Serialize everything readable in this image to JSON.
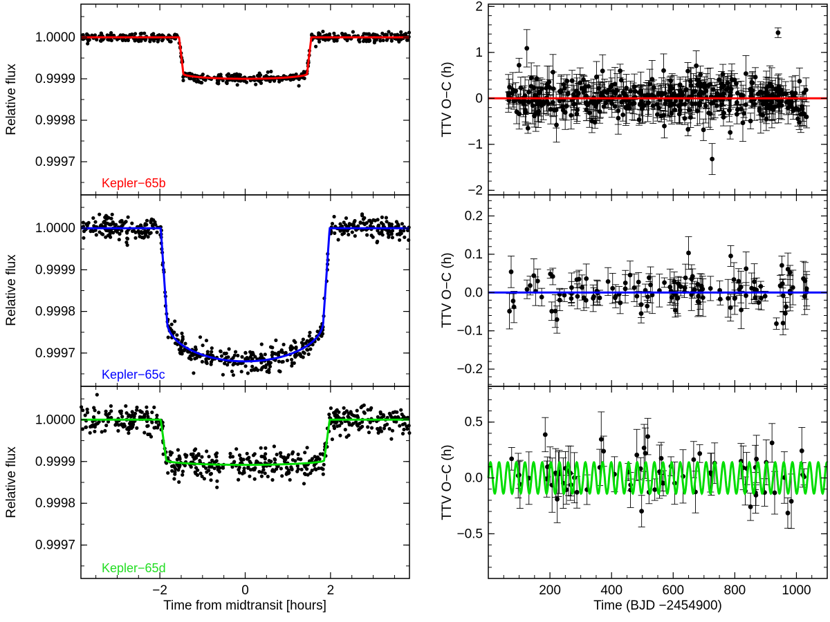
{
  "figure": {
    "left_panels": {
      "xlabel": "Time from midtransit [hours]",
      "ylabel": "Relative flux",
      "xlim": [
        -3.85,
        3.85
      ],
      "xticks": [
        -2,
        0,
        2
      ],
      "xticklabels": [
        "−2",
        "0",
        "2"
      ]
    },
    "right_panels": {
      "xlabel": "Time (BJD −2454900)",
      "ylabel": "TTV O−C (h)",
      "xlim": [
        0,
        1100
      ],
      "xticks": [
        200,
        400,
        600,
        800,
        1000
      ],
      "xticklabels": [
        "200",
        "400",
        "600",
        "800",
        "1000"
      ]
    }
  },
  "chart_data": [
    {
      "type": "scatter",
      "panel": "light-curve-b",
      "title": "Kepler−65b",
      "color": "#ff0000",
      "xlabel": "",
      "ylabel": "Relative flux",
      "xlim": [
        -3.85,
        3.85
      ],
      "ylim": [
        0.99962,
        1.00008
      ],
      "yticks": [
        1.0,
        0.9999,
        0.9998,
        0.9997
      ],
      "yticklabels": [
        "1.0000",
        "0.9999",
        "0.9998",
        "0.9997"
      ],
      "model": {
        "depth": 0.0001,
        "half_duration": 1.55,
        "ingress": 0.1,
        "limb_darkening": 0.12
      },
      "scatter_sigma": 5.5e-06,
      "n_points": 520
    },
    {
      "type": "scatter",
      "panel": "light-curve-c",
      "title": "Kepler−65c",
      "color": "#0000ff",
      "xlabel": "",
      "ylabel": "Relative flux",
      "xlim": [
        -3.85,
        3.85
      ],
      "ylim": [
        0.99962,
        1.00008
      ],
      "yticks": [
        1.0,
        0.9999,
        0.9998,
        0.9997
      ],
      "yticklabels": [
        "1.0000",
        "0.9999",
        "0.9998",
        "0.9997"
      ],
      "model": {
        "depth": 0.00032,
        "half_duration": 1.98,
        "ingress": 0.15,
        "limb_darkening": 0.3
      },
      "scatter_sigma": 1.35e-05,
      "n_points": 560
    },
    {
      "type": "scatter",
      "panel": "light-curve-d",
      "title": "Kepler−65d",
      "color": "#00dd00",
      "xlabel": "Time from midtransit [hours]",
      "ylabel": "Relative flux",
      "xlim": [
        -3.85,
        3.85
      ],
      "ylim": [
        0.99962,
        1.00008
      ],
      "yticks": [
        1.0,
        0.9999,
        0.9998,
        0.9997
      ],
      "yticklabels": [
        "1.0000",
        "0.9999",
        "0.9998",
        "0.9997"
      ],
      "model": {
        "depth": 0.000108,
        "half_duration": 1.98,
        "ingress": 0.13,
        "limb_darkening": 0.1
      },
      "scatter_sigma": 1.75e-05,
      "n_points": 560
    },
    {
      "type": "scatter",
      "panel": "ttv-b",
      "color": "#ff0000",
      "xlabel": "",
      "ylabel": "TTV O−C (h)",
      "xlim": [
        0,
        1100
      ],
      "ylim": [
        -2.1,
        2.05
      ],
      "yticks": [
        2,
        1,
        0,
        -1,
        -2
      ],
      "yticklabels": [
        "2",
        "1",
        "0",
        "−1",
        "−2"
      ],
      "model": {
        "type": "constant",
        "value": 0
      },
      "n_points": 420,
      "x_range": [
        65,
        1035
      ],
      "typical_error": 0.25
    },
    {
      "type": "scatter",
      "panel": "ttv-c",
      "color": "#0000ff",
      "xlabel": "",
      "ylabel": "TTV O−C (h)",
      "xlim": [
        0,
        1100
      ],
      "ylim": [
        -0.245,
        0.255
      ],
      "yticks": [
        0.2,
        0.1,
        0.0,
        -0.1,
        -0.2
      ],
      "yticklabels": [
        "0.2",
        "0.1",
        "0.0",
        "−0.1",
        "−0.2"
      ],
      "model": {
        "type": "constant",
        "value": 0
      },
      "n_points": 125,
      "x_range": [
        65,
        1035
      ],
      "typical_error": 0.03
    },
    {
      "type": "scatter",
      "panel": "ttv-d",
      "color": "#00dd00",
      "xlabel": "Time (BJD −2454900)",
      "ylabel": "TTV O−C (h)",
      "xlim": [
        0,
        1100
      ],
      "ylim": [
        -0.9,
        0.82
      ],
      "yticks": [
        0.5,
        0.0,
        -0.5
      ],
      "yticklabels": [
        "0.5",
        "0.0",
        "−0.5"
      ],
      "model": {
        "type": "sinusoid",
        "amplitude": 0.14,
        "period": 28.0,
        "phase": 0.0
      },
      "n_points": 70,
      "x_range": [
        65,
        1035
      ],
      "typical_error": 0.15
    }
  ]
}
